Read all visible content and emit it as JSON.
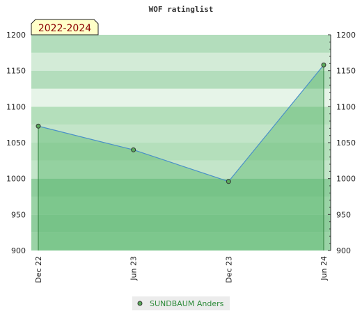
{
  "chart_data": {
    "type": "area",
    "title": "WOF ratinglist",
    "badge": "2022-2024",
    "categories": [
      "Dec 22",
      "Jun 23",
      "Dec 23",
      "Jun 24"
    ],
    "series": [
      {
        "name": "SUNDBAUM Anders",
        "values": [
          1073,
          1040,
          996,
          1158
        ]
      }
    ],
    "ylim": [
      900,
      1200
    ],
    "yticks": [
      900,
      950,
      1000,
      1050,
      1100,
      1150,
      1200
    ],
    "xlabel": "",
    "ylabel": "",
    "grid": true,
    "legend": "bottom-center",
    "colors": {
      "line": "#4a90c8",
      "marker_fill": "#5aaa5a",
      "fill_above_base": "#6bbf7b",
      "badge_bg": "#ffffc8"
    }
  }
}
